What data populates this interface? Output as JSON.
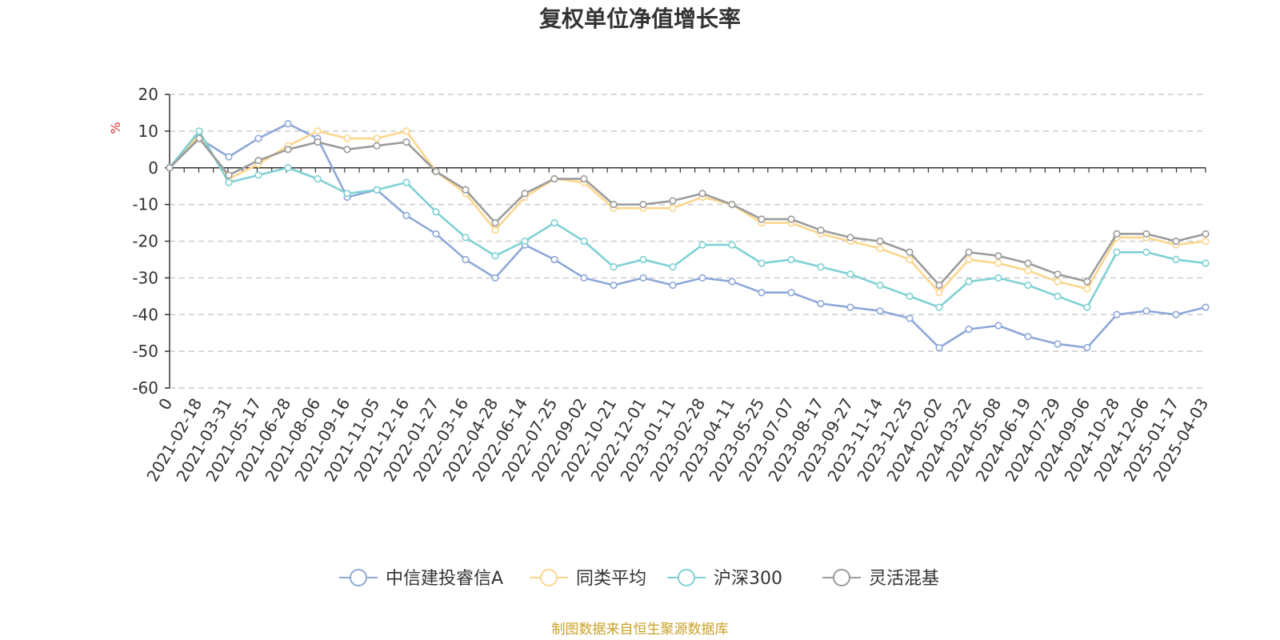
{
  "chart_data": {
    "type": "line",
    "title": "复权单位净值增长率",
    "ylabel": "%",
    "xlabel": "",
    "ylim": [
      -60,
      20
    ],
    "yticks": [
      20,
      10,
      0,
      -10,
      -20,
      -30,
      -40,
      -50,
      -60
    ],
    "x_tick_labels": [
      "0",
      "2021-02-18",
      "2021-03-31",
      "2021-05-17",
      "2021-06-28",
      "2021-08-06",
      "2021-09-16",
      "2021-11-05",
      "2021-12-16",
      "2022-01-27",
      "2022-03-16",
      "2022-04-28",
      "2022-06-14",
      "2022-07-25",
      "2022-09-02",
      "2022-10-21",
      "2022-12-01",
      "2023-01-11",
      "2023-02-28",
      "2023-04-11",
      "2023-05-25",
      "2023-07-07",
      "2023-08-17",
      "2023-09-27",
      "2023-11-14",
      "2023-12-25",
      "2024-02-02",
      "2024-03-22",
      "2024-05-08",
      "2024-06-19",
      "2024-07-29",
      "2024-09-06",
      "2024-10-28",
      "2024-12-06",
      "2025-01-17",
      "2025-04-03"
    ],
    "x": [
      0,
      1,
      2,
      3,
      4,
      5,
      6,
      7,
      8,
      9,
      10,
      11,
      12,
      13,
      14,
      15,
      16,
      17,
      18,
      19,
      20,
      21,
      22,
      23,
      24,
      25,
      26,
      27,
      28,
      29,
      30,
      31,
      32,
      33,
      34,
      35
    ],
    "grid": true,
    "legend_position": "bottom",
    "series": [
      {
        "name": "中信建投睿信A",
        "color": "#8ea8d8",
        "values": [
          0,
          8,
          3,
          8,
          12,
          8,
          -8,
          -6,
          -13,
          -18,
          -25,
          -30,
          -21,
          -25,
          -30,
          -32,
          -30,
          -32,
          -30,
          -31,
          -34,
          -34,
          -37,
          -38,
          -39,
          -41,
          -49,
          -44,
          -43,
          -46,
          -48,
          -49,
          -40,
          -39,
          -40,
          -38
        ]
      },
      {
        "name": "同类平均",
        "color": "#fcd68c",
        "values": [
          0,
          9,
          -3,
          1,
          6,
          10,
          8,
          8,
          10,
          -1,
          -7,
          -17,
          -8,
          -3,
          -4,
          -11,
          -11,
          -11,
          -8,
          -10,
          -15,
          -15,
          -18,
          -20,
          -22,
          -25,
          -34,
          -25,
          -26,
          -28,
          -31,
          -33,
          -19,
          -19,
          -21,
          -20
        ]
      },
      {
        "name": "沪深300",
        "color": "#7fd1d4",
        "values": [
          0,
          10,
          -4,
          -2,
          0,
          -3,
          -7,
          -6,
          -4,
          -12,
          -19,
          -24,
          -20,
          -15,
          -20,
          -27,
          -25,
          -27,
          -21,
          -21,
          -26,
          -25,
          -27,
          -29,
          -32,
          -35,
          -38,
          -31,
          -30,
          -32,
          -35,
          -38,
          -23,
          -23,
          -25,
          -26
        ]
      },
      {
        "name": "灵活混基",
        "color": "#9b9b9b",
        "values": [
          0,
          8,
          -2,
          2,
          5,
          7,
          5,
          6,
          7,
          -1,
          -6,
          -15,
          -7,
          -3,
          -3,
          -10,
          -10,
          -9,
          -7,
          -10,
          -14,
          -14,
          -17,
          -19,
          -20,
          -23,
          -32,
          -23,
          -24,
          -26,
          -29,
          -31,
          -18,
          -18,
          -20,
          -18
        ]
      }
    ]
  },
  "source_note": {
    "text": "制图数据来自恒生聚源数据库",
    "color": "#c9a227"
  },
  "colors": {
    "axis": "#333333",
    "grid": "#cccccc",
    "ylabel": "#e03030"
  }
}
